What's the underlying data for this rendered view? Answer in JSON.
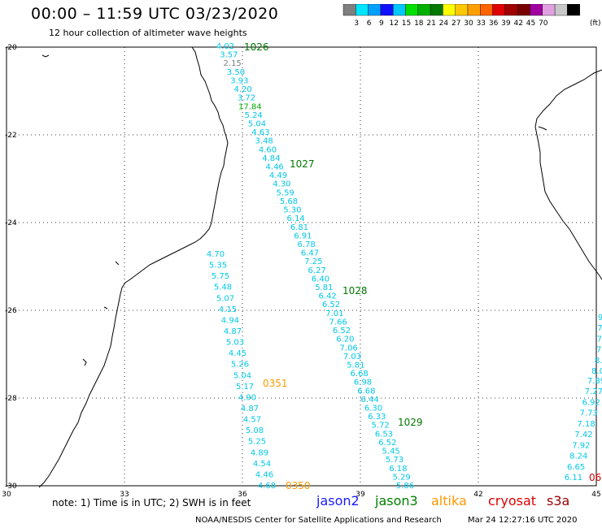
{
  "title": "00:00 – 11:59 UTC 03/23/2020",
  "subtitle": "12 hour collection of altimeter wave heights",
  "colorbar": {
    "unit": "(ft)",
    "colors": [
      "#7f7f7f",
      "#00e5ff",
      "#00a0ff",
      "#1010ff",
      "#00c8ff",
      "#00e000",
      "#00b000",
      "#007800",
      "#ffff00",
      "#ffc800",
      "#ffa000",
      "#ff6400",
      "#e00000",
      "#a00000",
      "#780000",
      "#a000a0",
      "#e0a0e0",
      "#c8c8c8",
      "#000000"
    ],
    "labels": [
      "3",
      "6",
      "9",
      "12",
      "15",
      "18",
      "21",
      "24",
      "27",
      "30",
      "33",
      "36",
      "39",
      "42",
      "45",
      "70"
    ]
  },
  "axes": {
    "x_ticks": [
      "30",
      "33",
      "36",
      "39",
      "42",
      "45"
    ],
    "y_ticks": [
      "-20",
      "-22",
      "-24",
      "-26",
      "-28",
      "-30"
    ]
  },
  "passes": [
    {
      "id": "1026",
      "satellite": "jason3",
      "color": "#007800"
    },
    {
      "id": "1027",
      "satellite": "jason3",
      "color": "#007800"
    },
    {
      "id": "1028",
      "satellite": "jason3",
      "color": "#007800"
    },
    {
      "id": "1029",
      "satellite": "jason3",
      "color": "#007800"
    },
    {
      "id": "0351",
      "satellite": "altika",
      "color": "#ff9900"
    },
    {
      "id": "0350",
      "satellite": "altika",
      "color": "#ff9900"
    },
    {
      "id": "06",
      "satellite": "cryosat",
      "color": "#cc0000"
    }
  ],
  "track1_values": [
    "4.02",
    "3.57",
    "2.15",
    "3.50",
    "3.93",
    "4.20",
    "3.72",
    "17.84",
    "5.24",
    "5.04",
    "4.63",
    "3.48",
    "4.60",
    "4.84",
    "4.46",
    "4.49",
    "4.30",
    "5.59",
    "5.68",
    "5.30",
    "6.14",
    "6.81",
    "6.91",
    "6.78",
    "6.47",
    "7.25",
    "6.27",
    "6.40",
    "5.81",
    "6.42",
    "6.52",
    "7.01",
    "7.66",
    "6.52",
    "6.20",
    "7.06",
    "7.03",
    "5.81",
    "6.68",
    "6.98",
    "6.68",
    "6.44",
    "6.30",
    "6.33",
    "5.72",
    "6.53",
    "6.52",
    "5.45",
    "5.73",
    "6.18",
    "5.29",
    "5.86"
  ],
  "track1_colors": {
    "2.15": "#7f7f7f",
    "17.84": "#00b000"
  },
  "track2_values": [
    "4.70",
    "5.35",
    "5.75",
    "5.48",
    "5.07",
    "4.15",
    "4.94",
    "4.87",
    "5.03",
    "4.45",
    "5.26",
    "5.04",
    "5.17",
    "4.90",
    "4.87",
    "4.57",
    "5.08",
    "5.25",
    "4.89",
    "4.54",
    "4.46",
    "4.68"
  ],
  "track3_values": [
    "7.89",
    "7.27",
    "6.92",
    "7.73",
    "7.18",
    "7.42",
    "7.92",
    "8.24",
    "6.65",
    "6.11"
  ],
  "track3_partial": [
    "9",
    "7",
    "7",
    "7",
    "8.",
    "8.0"
  ],
  "note": "note:  1) Time is in UTC; 2) SWH is in feet",
  "satellites": [
    {
      "name": "jason2",
      "color": "#1a1aff"
    },
    {
      "name": "jason3",
      "color": "#008000"
    },
    {
      "name": "altika",
      "color": "#ff9900"
    },
    {
      "name": "cryosat",
      "color": "#dd0000"
    },
    {
      "name": "s3a",
      "color": "#990000"
    }
  ],
  "credit": "NOAA/NESDIS Center for Satellite Applications and Research",
  "timestamp": "Mar 24 12:27:16 UTC 2020"
}
